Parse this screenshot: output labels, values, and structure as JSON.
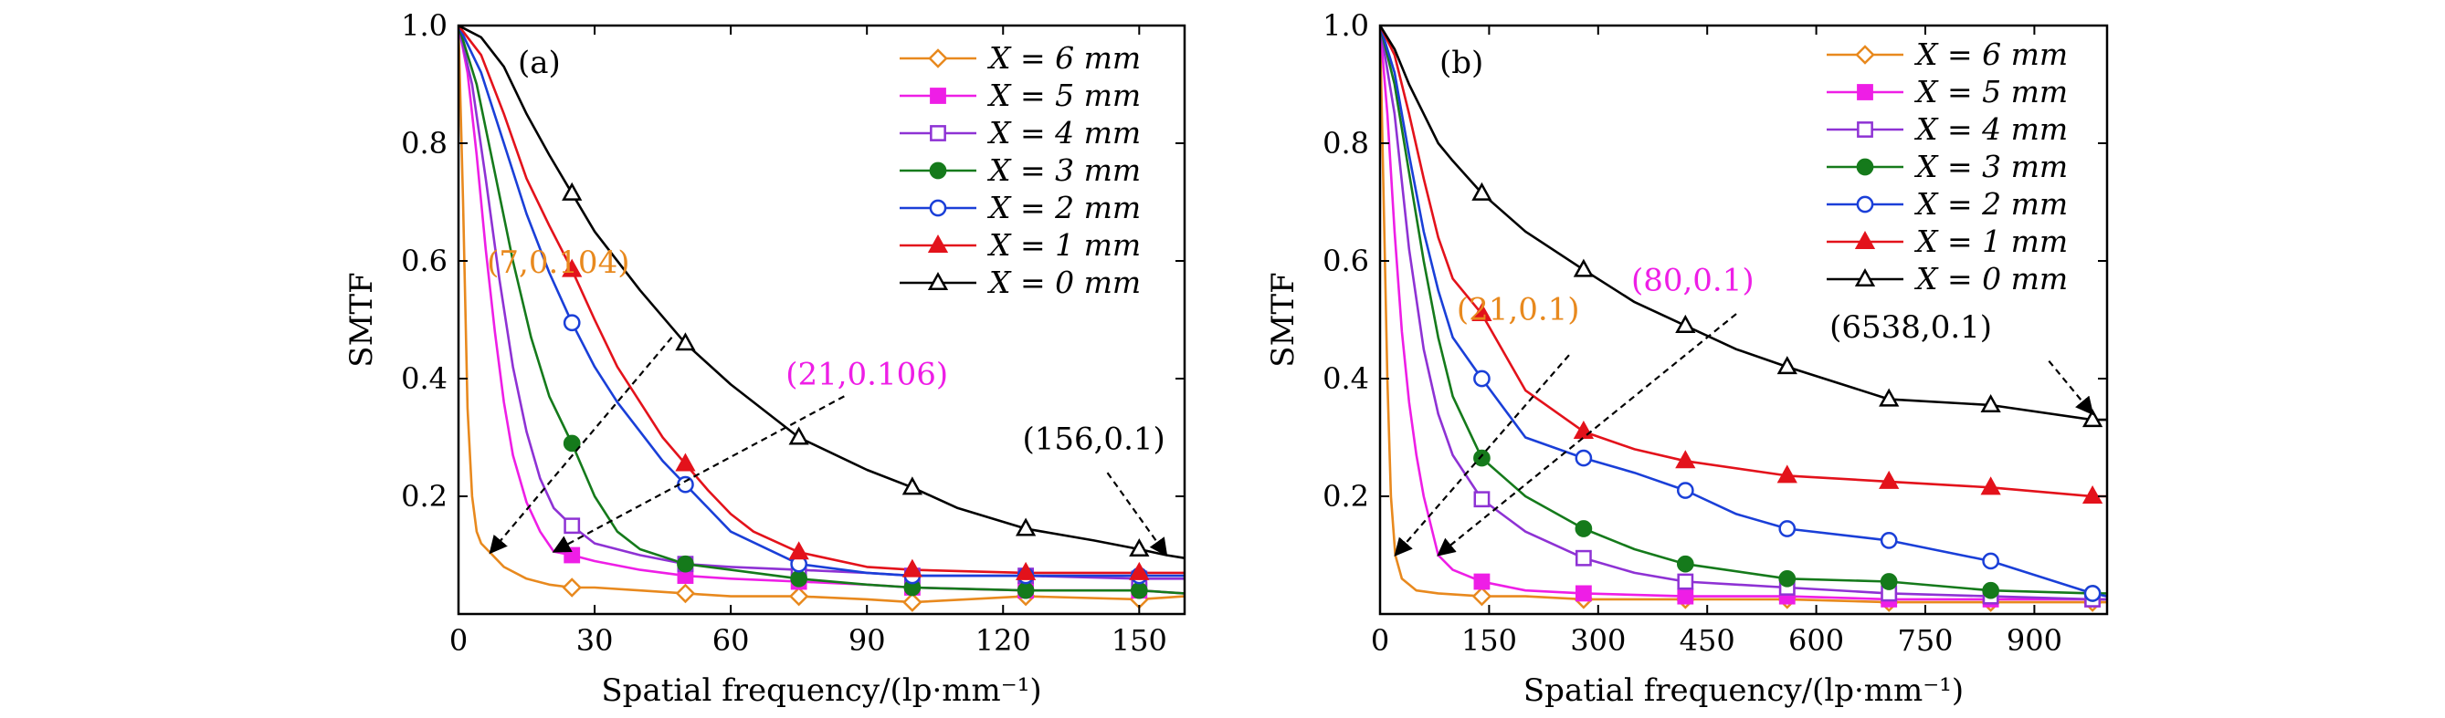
{
  "chart_data": [
    {
      "type": "line",
      "panel_label": "(a)",
      "xlabel": "Spatial frequency/(lp·mm⁻¹)",
      "ylabel": "SMTF",
      "xlim": [
        0,
        160
      ],
      "ylim": [
        0,
        1.0
      ],
      "xticks": [
        0,
        30,
        60,
        90,
        120,
        150
      ],
      "xtick_labels": [
        "0",
        "30",
        "60",
        "90",
        "120",
        "150"
      ],
      "yticks": [
        0.2,
        0.4,
        0.6,
        0.8,
        1.0
      ],
      "ytick_labels": [
        "0.2",
        "0.4",
        "0.6",
        "0.8",
        "1.0"
      ],
      "legend_position": "top-right",
      "series": [
        {
          "name": "X = 6 mm",
          "color": "#e8891e",
          "marker": "diamond-open",
          "marker_x": [
            25,
            50,
            75,
            100,
            125,
            150
          ],
          "x": [
            0,
            1,
            2,
            3,
            4,
            5,
            7,
            10,
            15,
            20,
            25,
            30,
            40,
            50,
            60,
            75,
            90,
            100,
            125,
            150,
            160
          ],
          "y": [
            1.0,
            0.7,
            0.35,
            0.2,
            0.14,
            0.12,
            0.104,
            0.08,
            0.06,
            0.05,
            0.045,
            0.045,
            0.04,
            0.035,
            0.03,
            0.03,
            0.025,
            0.02,
            0.03,
            0.025,
            0.03
          ]
        },
        {
          "name": "X = 5 mm",
          "color": "#ee1ee6",
          "marker": "square-filled",
          "marker_x": [
            25,
            50,
            75,
            100,
            125,
            150
          ],
          "x": [
            0,
            2,
            4,
            6,
            8,
            10,
            12,
            15,
            18,
            21,
            25,
            30,
            40,
            50,
            60,
            75,
            90,
            100,
            125,
            150,
            160
          ],
          "y": [
            1.0,
            0.92,
            0.78,
            0.62,
            0.48,
            0.36,
            0.27,
            0.19,
            0.14,
            0.106,
            0.1,
            0.09,
            0.075,
            0.065,
            0.06,
            0.055,
            0.05,
            0.045,
            0.04,
            0.04,
            0.035
          ]
        },
        {
          "name": "X = 4 mm",
          "color": "#8e32d4",
          "marker": "square-open",
          "marker_x": [
            25,
            50,
            75,
            100,
            125,
            150
          ],
          "x": [
            0,
            3,
            6,
            9,
            12,
            15,
            18,
            21,
            25,
            30,
            40,
            50,
            60,
            75,
            90,
            100,
            125,
            150,
            160
          ],
          "y": [
            1.0,
            0.9,
            0.74,
            0.57,
            0.42,
            0.31,
            0.23,
            0.18,
            0.15,
            0.12,
            0.1,
            0.085,
            0.08,
            0.075,
            0.07,
            0.065,
            0.065,
            0.06,
            0.06
          ]
        },
        {
          "name": "X = 3 mm",
          "color": "#157a1b",
          "marker": "circle-filled",
          "marker_x": [
            25,
            50,
            75,
            100,
            125,
            150
          ],
          "x": [
            0,
            4,
            8,
            12,
            16,
            20,
            25,
            30,
            35,
            40,
            50,
            60,
            75,
            90,
            100,
            125,
            150,
            160
          ],
          "y": [
            1.0,
            0.9,
            0.75,
            0.6,
            0.47,
            0.37,
            0.29,
            0.2,
            0.14,
            0.11,
            0.085,
            0.075,
            0.06,
            0.05,
            0.045,
            0.04,
            0.04,
            0.035
          ]
        },
        {
          "name": "X = 2 mm",
          "color": "#1a3fd8",
          "marker": "circle-open",
          "marker_x": [
            25,
            50,
            75,
            100,
            125,
            150
          ],
          "x": [
            0,
            5,
            10,
            15,
            20,
            25,
            30,
            35,
            40,
            45,
            50,
            55,
            60,
            75,
            90,
            100,
            125,
            150,
            160
          ],
          "y": [
            1.0,
            0.92,
            0.8,
            0.68,
            0.58,
            0.495,
            0.42,
            0.36,
            0.31,
            0.26,
            0.22,
            0.18,
            0.14,
            0.085,
            0.07,
            0.065,
            0.065,
            0.065,
            0.065
          ]
        },
        {
          "name": "X = 1 mm",
          "color": "#e3121b",
          "marker": "triangle-filled",
          "marker_x": [
            25,
            50,
            75,
            100,
            125,
            150
          ],
          "x": [
            0,
            5,
            10,
            15,
            20,
            25,
            30,
            35,
            40,
            45,
            50,
            55,
            60,
            65,
            75,
            90,
            100,
            125,
            150,
            160
          ],
          "y": [
            1.0,
            0.95,
            0.85,
            0.74,
            0.66,
            0.585,
            0.5,
            0.42,
            0.36,
            0.3,
            0.255,
            0.21,
            0.17,
            0.14,
            0.105,
            0.08,
            0.075,
            0.07,
            0.07,
            0.07
          ]
        },
        {
          "name": "X = 0 mm",
          "color": "#000000",
          "marker": "triangle-open",
          "marker_x": [
            25,
            50,
            75,
            100,
            125,
            150
          ],
          "x": [
            0,
            5,
            10,
            15,
            20,
            25,
            30,
            40,
            50,
            60,
            75,
            90,
            100,
            110,
            125,
            140,
            150,
            156,
            160
          ],
          "y": [
            1.0,
            0.98,
            0.93,
            0.85,
            0.78,
            0.715,
            0.65,
            0.55,
            0.46,
            0.39,
            0.3,
            0.245,
            0.215,
            0.18,
            0.145,
            0.125,
            0.11,
            0.1,
            0.095
          ]
        }
      ],
      "annotations": [
        {
          "text": "(7,0.104)",
          "color": "#e8891e",
          "text_at": [
            22,
            0.58
          ],
          "arrow_from": [
            47,
            0.47
          ],
          "arrow_to": [
            7,
            0.104
          ]
        },
        {
          "text": "(21,0.106)",
          "color": "#ee1ee6",
          "text_at": [
            90,
            0.39
          ],
          "arrow_from": [
            85,
            0.37
          ],
          "arrow_to": [
            21,
            0.106
          ]
        },
        {
          "text": "(156,0.1)",
          "color": "#000000",
          "text_at": [
            140,
            0.28
          ],
          "arrow_from": [
            143,
            0.24
          ],
          "arrow_to": [
            156,
            0.1
          ]
        }
      ]
    },
    {
      "type": "line",
      "panel_label": "(b)",
      "xlabel": "Spatial frequency/(lp·mm⁻¹)",
      "ylabel": "SMTF",
      "xlim": [
        0,
        1000
      ],
      "ylim": [
        0,
        1.0
      ],
      "xticks": [
        0,
        150,
        300,
        450,
        600,
        750,
        900
      ],
      "xtick_labels": [
        "0",
        "150",
        "300",
        "450",
        "600",
        "750",
        "900"
      ],
      "yticks": [
        0.2,
        0.4,
        0.6,
        0.8,
        1.0
      ],
      "ytick_labels": [
        "0.2",
        "0.4",
        "0.6",
        "0.8",
        "1.0"
      ],
      "legend_position": "top-right",
      "series": [
        {
          "name": "X = 6 mm",
          "color": "#e8891e",
          "marker": "diamond-open",
          "marker_x": [
            140,
            280,
            420,
            560,
            700,
            840,
            980
          ],
          "x": [
            0,
            5,
            10,
            15,
            21,
            30,
            50,
            80,
            140,
            200,
            280,
            350,
            420,
            560,
            700,
            840,
            980,
            1000
          ],
          "y": [
            1.0,
            0.7,
            0.4,
            0.2,
            0.1,
            0.06,
            0.04,
            0.035,
            0.03,
            0.03,
            0.025,
            0.025,
            0.025,
            0.025,
            0.02,
            0.02,
            0.02,
            0.02
          ]
        },
        {
          "name": "X = 5 mm",
          "color": "#ee1ee6",
          "marker": "square-filled",
          "marker_x": [
            140,
            280,
            420,
            560,
            700,
            840,
            980
          ],
          "x": [
            0,
            10,
            20,
            30,
            40,
            50,
            60,
            80,
            100,
            140,
            200,
            280,
            420,
            560,
            700,
            840,
            980,
            1000
          ],
          "y": [
            1.0,
            0.85,
            0.65,
            0.48,
            0.36,
            0.27,
            0.2,
            0.1,
            0.075,
            0.055,
            0.04,
            0.035,
            0.03,
            0.03,
            0.025,
            0.025,
            0.025,
            0.025
          ]
        },
        {
          "name": "X = 4 mm",
          "color": "#8e32d4",
          "marker": "square-open",
          "marker_x": [
            140,
            280,
            420,
            560,
            700,
            840,
            980
          ],
          "x": [
            0,
            20,
            40,
            60,
            80,
            100,
            140,
            200,
            280,
            350,
            420,
            560,
            700,
            840,
            980,
            1000
          ],
          "y": [
            1.0,
            0.85,
            0.62,
            0.45,
            0.34,
            0.27,
            0.195,
            0.14,
            0.095,
            0.07,
            0.055,
            0.045,
            0.035,
            0.03,
            0.025,
            0.025
          ]
        },
        {
          "name": "X = 3 mm",
          "color": "#157a1b",
          "marker": "circle-filled",
          "marker_x": [
            140,
            280,
            420,
            560,
            700,
            840,
            980
          ],
          "x": [
            0,
            20,
            40,
            60,
            80,
            100,
            140,
            200,
            280,
            350,
            420,
            560,
            700,
            840,
            980,
            1000
          ],
          "y": [
            1.0,
            0.9,
            0.75,
            0.6,
            0.47,
            0.37,
            0.265,
            0.2,
            0.145,
            0.11,
            0.085,
            0.06,
            0.055,
            0.04,
            0.035,
            0.035
          ]
        },
        {
          "name": "X = 2 mm",
          "color": "#1a3fd8",
          "marker": "circle-open",
          "marker_x": [
            140,
            280,
            420,
            560,
            700,
            840,
            980
          ],
          "x": [
            0,
            20,
            40,
            60,
            80,
            100,
            140,
            200,
            280,
            350,
            420,
            490,
            560,
            700,
            840,
            980,
            1000
          ],
          "y": [
            1.0,
            0.92,
            0.78,
            0.65,
            0.55,
            0.47,
            0.4,
            0.3,
            0.265,
            0.24,
            0.21,
            0.17,
            0.145,
            0.125,
            0.09,
            0.035,
            0.03
          ]
        },
        {
          "name": "X = 1 mm",
          "color": "#e3121b",
          "marker": "triangle-filled",
          "marker_x": [
            140,
            280,
            420,
            560,
            700,
            840,
            980
          ],
          "x": [
            0,
            20,
            40,
            60,
            80,
            100,
            140,
            200,
            280,
            350,
            420,
            560,
            700,
            840,
            980,
            1000
          ],
          "y": [
            1.0,
            0.95,
            0.85,
            0.74,
            0.64,
            0.57,
            0.51,
            0.38,
            0.31,
            0.28,
            0.26,
            0.235,
            0.225,
            0.215,
            0.2,
            0.2
          ]
        },
        {
          "name": "X = 0 mm",
          "color": "#000000",
          "marker": "triangle-open",
          "marker_x": [
            140,
            280,
            420,
            560,
            700,
            840,
            980
          ],
          "x": [
            0,
            20,
            40,
            60,
            80,
            100,
            140,
            200,
            280,
            350,
            420,
            490,
            560,
            700,
            840,
            980,
            1000
          ],
          "y": [
            1.0,
            0.96,
            0.9,
            0.85,
            0.8,
            0.77,
            0.715,
            0.65,
            0.585,
            0.53,
            0.49,
            0.45,
            0.42,
            0.365,
            0.355,
            0.33,
            0.33
          ]
        }
      ],
      "annotations": [
        {
          "text": "(21,0.1)",
          "color": "#e8891e",
          "text_at": [
            190,
            0.5
          ],
          "arrow_from": [
            260,
            0.44
          ],
          "arrow_to": [
            21,
            0.1
          ]
        },
        {
          "text": "(80,0.1)",
          "color": "#ee1ee6",
          "text_at": [
            430,
            0.55
          ],
          "arrow_from": [
            490,
            0.51
          ],
          "arrow_to": [
            80,
            0.1
          ]
        },
        {
          "text": "(6538,0.1)",
          "color": "#000000",
          "text_at": [
            730,
            0.47
          ],
          "arrow_from": [
            920,
            0.43
          ],
          "arrow_to": [
            980,
            0.34
          ]
        }
      ]
    }
  ]
}
